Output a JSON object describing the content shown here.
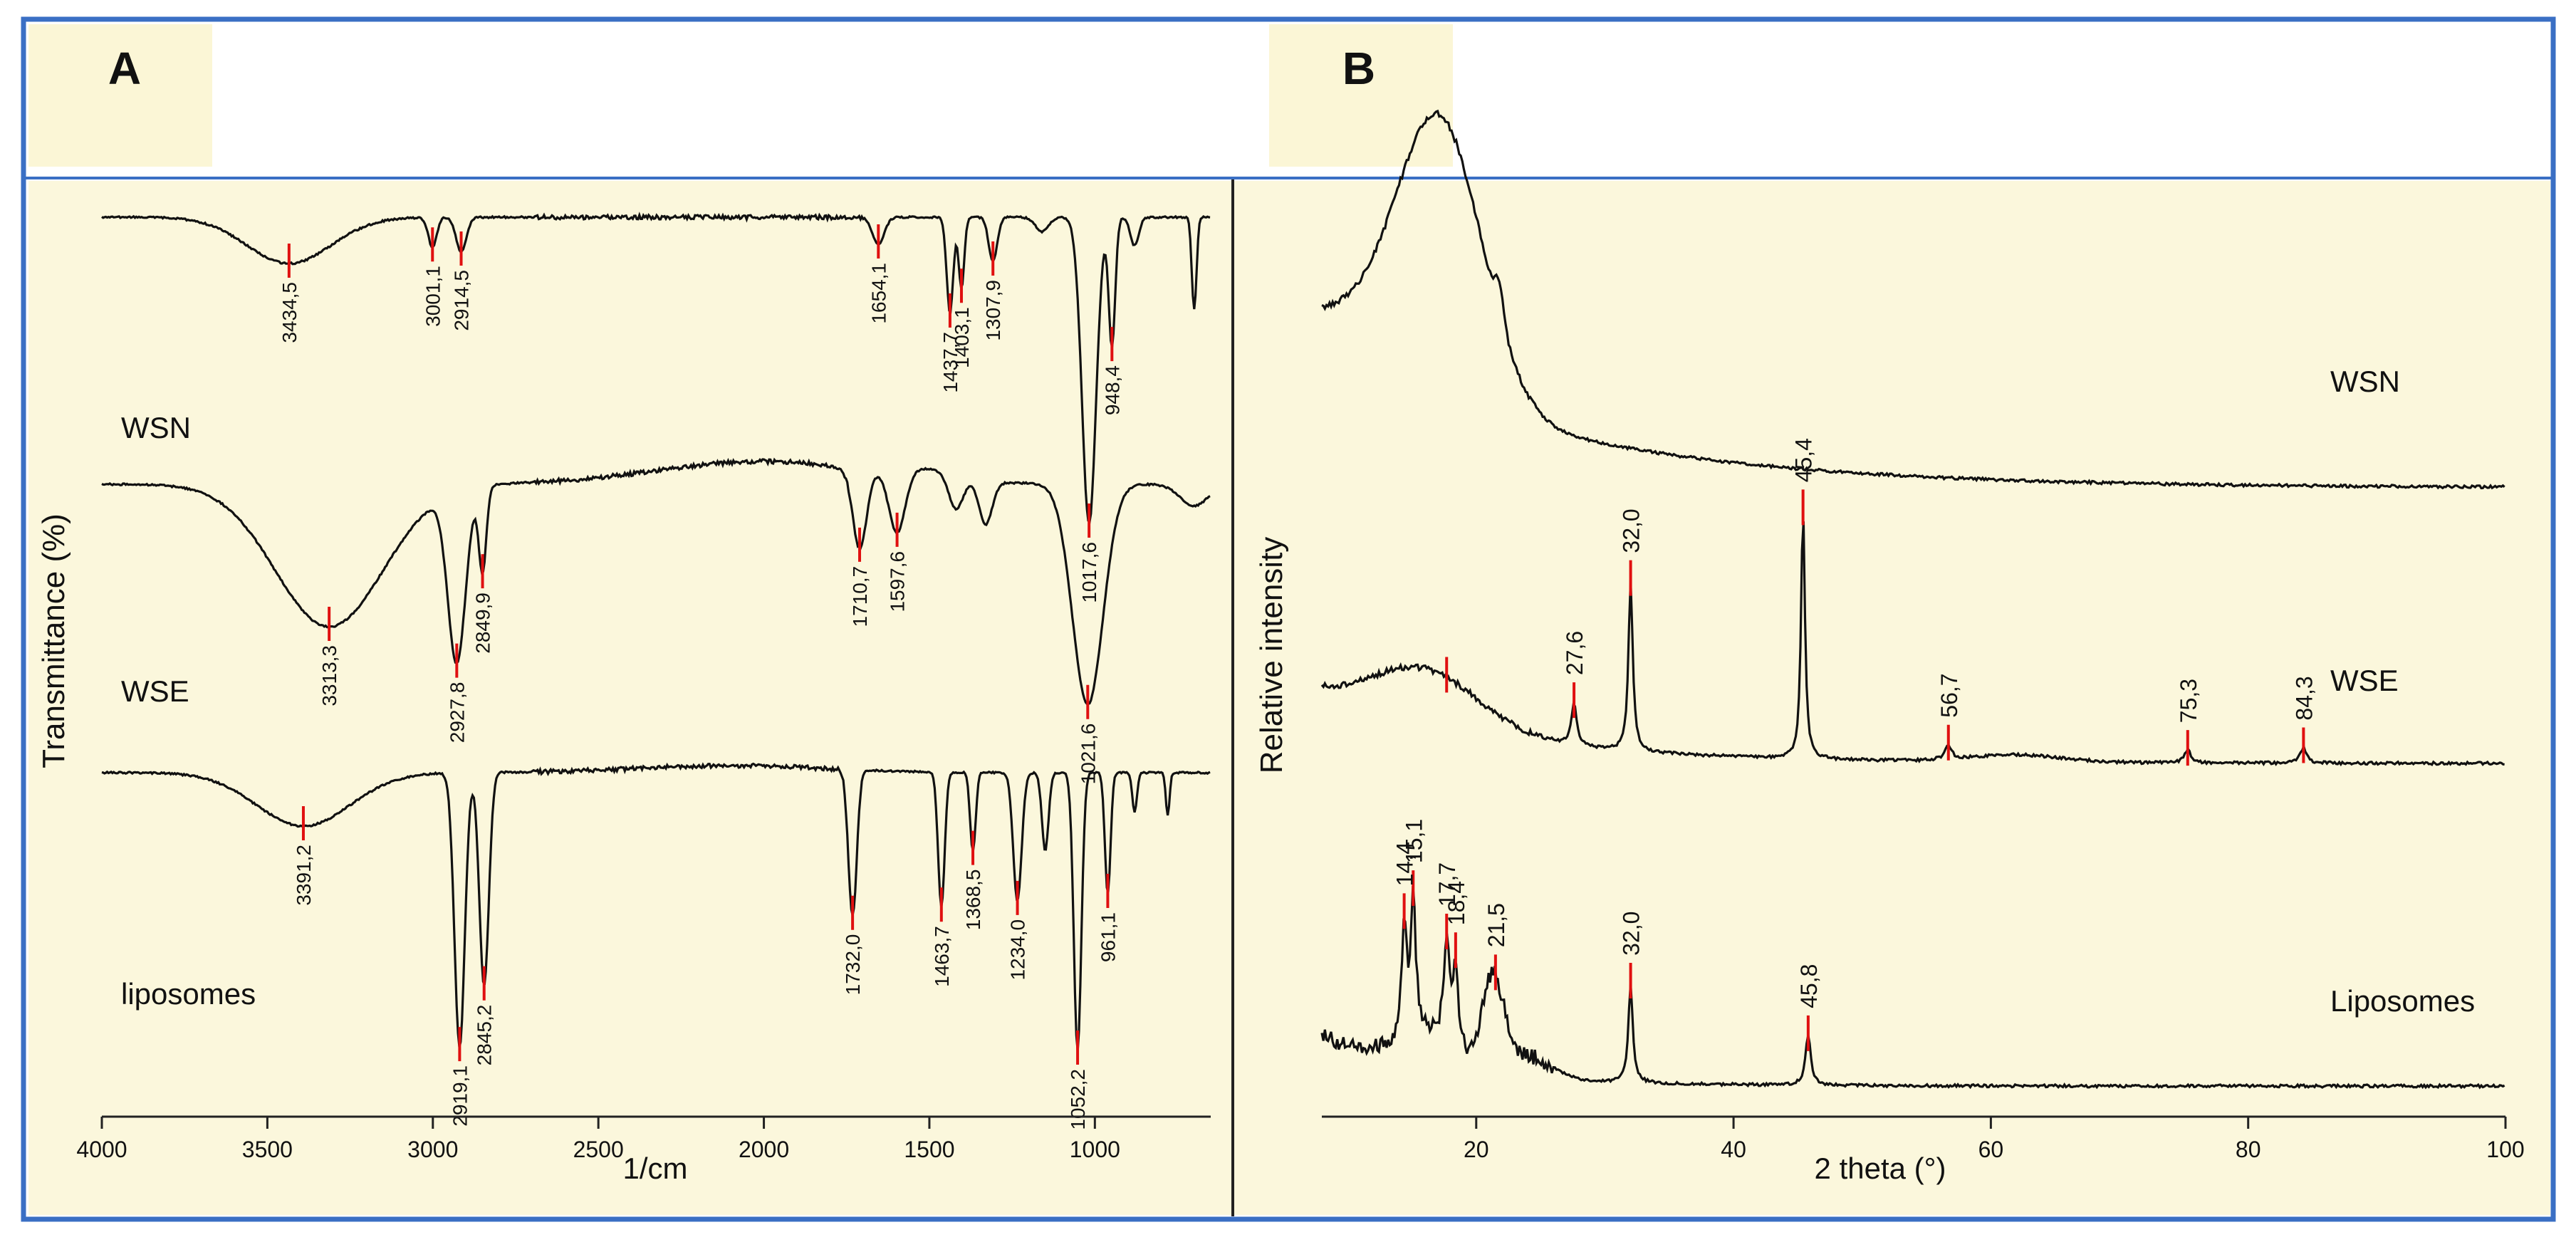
{
  "panels": {
    "a": {
      "label": "A"
    },
    "b": {
      "label": "B"
    }
  },
  "colors": {
    "frame": "#3a6fc4",
    "plot_bg": "#fbf7dc",
    "label_bg": "#fbf6d6",
    "trace": "#111111",
    "peak_marker": "#e01010"
  },
  "chart_data": [
    {
      "type": "line",
      "panel": "A",
      "xlabel": "1/cm",
      "ylabel": "Transmittance (%)",
      "xlim": [
        4000,
        650
      ],
      "x_reversed": true,
      "x_ticks": [
        4000,
        3500,
        3000,
        2500,
        2000,
        1500,
        1000
      ],
      "grid": false,
      "series": [
        {
          "name": "WSN",
          "peaks": [
            {
              "x": 3434.5,
              "label": "3434,5"
            },
            {
              "x": 3001.1,
              "label": "3001,1"
            },
            {
              "x": 2914.5,
              "label": "2914,5"
            },
            {
              "x": 1654.1,
              "label": "1654,1"
            },
            {
              "x": 1437.7,
              "label": "1437,7"
            },
            {
              "x": 1403.1,
              "label": "1403,1"
            },
            {
              "x": 1307.9,
              "label": "1307,9"
            },
            {
              "x": 1017.6,
              "label": "1017,6"
            },
            {
              "x": 948.4,
              "label": "948,4"
            }
          ]
        },
        {
          "name": "WSE",
          "peaks": [
            {
              "x": 3313.3,
              "label": "3313,3"
            },
            {
              "x": 2927.8,
              "label": "2927,8"
            },
            {
              "x": 2849.9,
              "label": "2849,9"
            },
            {
              "x": 1710.7,
              "label": "1710,7"
            },
            {
              "x": 1597.6,
              "label": "1597,6"
            },
            {
              "x": 1021.6,
              "label": "1021,6"
            }
          ]
        },
        {
          "name": "liposomes",
          "peaks": [
            {
              "x": 3391.2,
              "label": "3391,2"
            },
            {
              "x": 2919.1,
              "label": "2919,1"
            },
            {
              "x": 2845.2,
              "label": "2845,2"
            },
            {
              "x": 1732.0,
              "label": "1732,0"
            },
            {
              "x": 1463.7,
              "label": "1463,7"
            },
            {
              "x": 1368.5,
              "label": "1368,5"
            },
            {
              "x": 1234.0,
              "label": "1234,0"
            },
            {
              "x": 1052.2,
              "label": "1052,2"
            },
            {
              "x": 961.1,
              "label": "961,1"
            }
          ]
        }
      ]
    },
    {
      "type": "line",
      "panel": "B",
      "xlabel": "2 theta (°)",
      "ylabel": "Relative intensity",
      "xlim": [
        8,
        100
      ],
      "x_ticks": [
        20,
        40,
        60,
        80,
        100
      ],
      "grid": false,
      "series": [
        {
          "name": "WSN",
          "peaks": []
        },
        {
          "name": "WSE",
          "peaks": [
            {
              "x": 17.7,
              "label": ""
            },
            {
              "x": 27.6,
              "label": "27,6"
            },
            {
              "x": 32.0,
              "label": "32,0"
            },
            {
              "x": 45.4,
              "label": "45,4"
            },
            {
              "x": 56.7,
              "label": "56,7"
            },
            {
              "x": 75.3,
              "label": "75,3"
            },
            {
              "x": 84.3,
              "label": "84,3"
            }
          ]
        },
        {
          "name": "Liposomes",
          "peaks": [
            {
              "x": 14.4,
              "label": "14,4"
            },
            {
              "x": 15.1,
              "label": "15,1"
            },
            {
              "x": 17.7,
              "label": "17,7"
            },
            {
              "x": 18.4,
              "label": "18,4"
            },
            {
              "x": 21.5,
              "label": "21,5"
            },
            {
              "x": 32.0,
              "label": "32,0"
            },
            {
              "x": 45.8,
              "label": "45,8"
            }
          ]
        }
      ]
    }
  ]
}
